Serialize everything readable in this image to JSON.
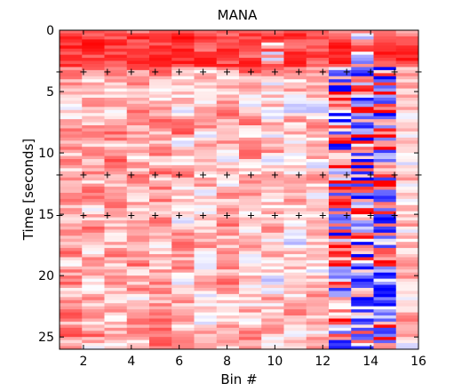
{
  "chart_data": {
    "type": "heatmap",
    "title": "MANA",
    "xlabel": "Bin #",
    "ylabel": "Time [seconds]",
    "xlim": [
      1,
      16
    ],
    "ylim": [
      0,
      26
    ],
    "y_reversed": true,
    "x_ticks": [
      2,
      4,
      6,
      8,
      10,
      12,
      14,
      16
    ],
    "y_ticks": [
      0,
      5,
      10,
      15,
      20,
      25
    ],
    "grid": false,
    "colormap": {
      "negative": "#0000ff",
      "zero": "#ffffff",
      "positive": "#ff0000"
    },
    "bins": [
      1,
      2,
      3,
      4,
      5,
      6,
      7,
      8,
      9,
      10,
      11,
      12,
      13,
      14,
      15,
      16
    ],
    "time_step_seconds": 0.25,
    "time_start_seconds": 0,
    "time_end_seconds": 26,
    "event_markers": [
      {
        "time": 3.4,
        "bins": [
          1,
          2,
          3,
          4,
          5,
          6,
          7,
          8,
          9,
          10,
          11,
          12,
          13,
          14,
          15,
          16
        ]
      },
      {
        "time": 11.8,
        "bins": [
          1,
          2,
          3,
          4,
          5,
          6,
          7,
          8,
          9,
          10,
          11,
          12,
          13,
          14,
          15,
          16
        ]
      },
      {
        "time": 15.1,
        "bins": [
          1,
          2,
          3,
          4,
          5,
          6,
          7,
          8,
          9,
          10,
          11,
          12,
          13,
          14,
          15
        ]
      }
    ]
  }
}
